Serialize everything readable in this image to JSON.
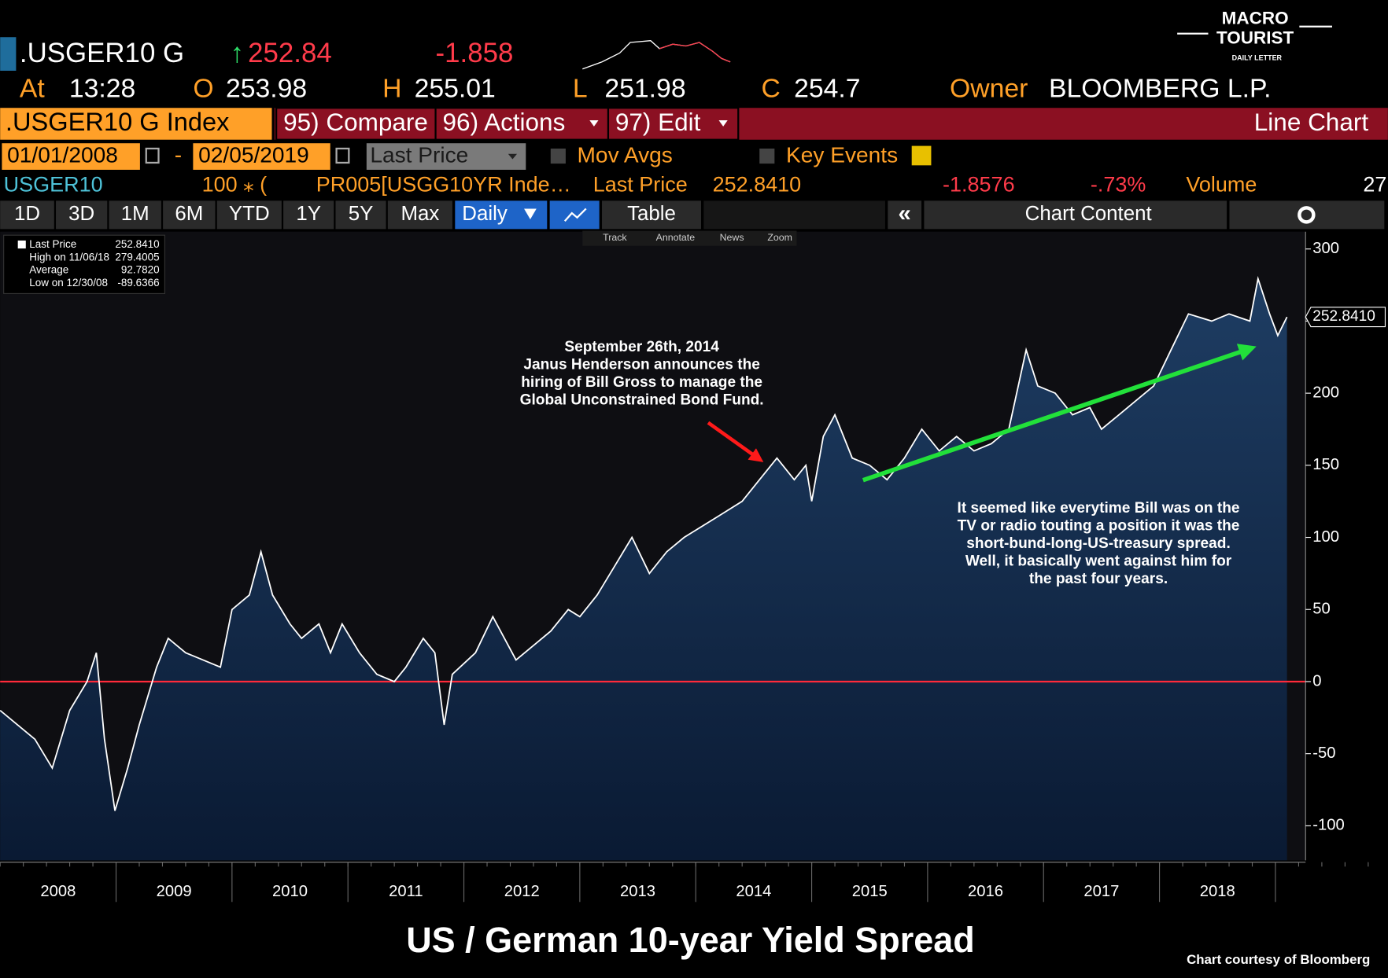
{
  "logo": {
    "line1": "MACRO",
    "line2": "TOURIST",
    "tagline": "DAILY LETTER"
  },
  "quote": {
    "ticker": ".USGER10 G",
    "last": "252.84",
    "change": "-1.858",
    "time_label": "At",
    "time": "13:28",
    "open_label": "O",
    "open": "253.98",
    "high_label": "H",
    "high": "255.01",
    "low_label": "L",
    "low": "251.98",
    "close_label": "C",
    "close": "254.7",
    "owner_label": "Owner",
    "owner": "BLOOMBERG L.P."
  },
  "menu": {
    "security": ".USGER10 G Index",
    "items": [
      "95) Compare",
      "96) Actions",
      "97) Edit"
    ],
    "view": "Line Chart"
  },
  "controls": {
    "start": "01/01/2008",
    "end": "02/05/2019",
    "field": "Last Price",
    "mov_avgs": "Mov Avgs",
    "key_events": "Key Events"
  },
  "ticker_row": [
    "USGER10",
    "100 ⁎ (",
    "PR005[USGG10YR Inde…",
    "Last Price",
    "252.8410",
    "-1.8576",
    "-.73%",
    "Volume",
    "27"
  ],
  "periods": [
    "1D",
    "3D",
    "1M",
    "6M",
    "YTD",
    "1Y",
    "5Y",
    "Max"
  ],
  "frequency": "Daily",
  "table": "Table",
  "chart_content": "Chart Content",
  "tools": [
    "Track",
    "Annotate",
    "News",
    "Zoom"
  ],
  "chart_data": {
    "type": "line",
    "title": "US / German 10-year Yield Spread",
    "credit": "Chart courtesy of Bloomberg",
    "legend": [
      {
        "label": "Last Price",
        "value": "252.8410"
      },
      {
        "label": "High on 11/06/18",
        "value": "279.4005"
      },
      {
        "label": "Average",
        "value": "92.7820"
      },
      {
        "label": "Low on 12/30/08",
        "value": "-89.6366"
      }
    ],
    "last_label": "252.8410",
    "annotations": [
      [
        "September 26th, 2014",
        "Janus Henderson announces the",
        "hiring of Bill Gross to manage the",
        "Global Unconstrained Bond Fund."
      ],
      [
        "It seemed like everytime Bill was on the",
        "TV or radio touting a position it was the",
        "short-bund-long-US-treasury spread.",
        "Well, it basically went against him for",
        "the past four years."
      ]
    ],
    "reference_line": 0,
    "xlim": [
      2008,
      2019.26
    ],
    "xticks": [
      {
        "value": 2008.5,
        "label": "2008"
      },
      {
        "value": 2009.5,
        "label": "2009"
      },
      {
        "value": 2010.5,
        "label": "2010"
      },
      {
        "value": 2011.5,
        "label": "2011"
      },
      {
        "value": 2012.5,
        "label": "2012"
      },
      {
        "value": 2013.5,
        "label": "2013"
      },
      {
        "value": 2014.5,
        "label": "2014"
      },
      {
        "value": 2015.5,
        "label": "2015"
      },
      {
        "value": 2016.5,
        "label": "2016"
      },
      {
        "value": 2017.5,
        "label": "2017"
      },
      {
        "value": 2018.5,
        "label": "2018"
      }
    ],
    "ylim": [
      -124,
      312
    ],
    "yticks": [
      -100,
      -50,
      0,
      50,
      100,
      150,
      200,
      250,
      300
    ],
    "series": [
      {
        "name": "Last Price",
        "color": "#ffffff",
        "x": [
          2008.0,
          2008.15,
          2008.3,
          2008.45,
          2008.6,
          2008.75,
          2008.83,
          2008.9,
          2008.99,
          2009.1,
          2009.2,
          2009.35,
          2009.45,
          2009.6,
          2009.75,
          2009.9,
          2010.0,
          2010.15,
          2010.25,
          2010.35,
          2010.5,
          2010.6,
          2010.75,
          2010.85,
          2010.95,
          2011.1,
          2011.25,
          2011.4,
          2011.5,
          2011.65,
          2011.75,
          2011.83,
          2011.9,
          2012.1,
          2012.25,
          2012.35,
          2012.45,
          2012.6,
          2012.75,
          2012.9,
          2013.0,
          2013.15,
          2013.3,
          2013.45,
          2013.6,
          2013.75,
          2013.9,
          2014.0,
          2014.2,
          2014.4,
          2014.55,
          2014.7,
          2014.85,
          2014.95,
          2015.0,
          2015.1,
          2015.2,
          2015.35,
          2015.5,
          2015.65,
          2015.8,
          2015.95,
          2016.1,
          2016.25,
          2016.4,
          2016.55,
          2016.7,
          2016.85,
          2016.95,
          2017.1,
          2017.25,
          2017.4,
          2017.5,
          2017.65,
          2017.8,
          2017.95,
          2018.1,
          2018.25,
          2018.45,
          2018.6,
          2018.78,
          2018.85,
          2018.95,
          2019.02,
          2019.1
        ],
        "values": [
          -20,
          -30,
          -40,
          -60,
          -20,
          0,
          20,
          -40,
          -89.6,
          -60,
          -30,
          10,
          30,
          20,
          15,
          10,
          50,
          60,
          90,
          60,
          40,
          30,
          40,
          20,
          40,
          20,
          5,
          0,
          10,
          30,
          20,
          -30,
          5,
          20,
          45,
          30,
          15,
          25,
          35,
          50,
          45,
          60,
          80,
          100,
          75,
          90,
          100,
          105,
          115,
          125,
          140,
          155,
          140,
          150,
          125,
          170,
          185,
          155,
          150,
          140,
          155,
          175,
          160,
          170,
          160,
          165,
          175,
          230,
          205,
          200,
          185,
          190,
          175,
          185,
          195,
          205,
          230,
          255,
          250,
          255,
          250,
          279.4,
          255,
          240,
          252.841
        ]
      }
    ]
  }
}
